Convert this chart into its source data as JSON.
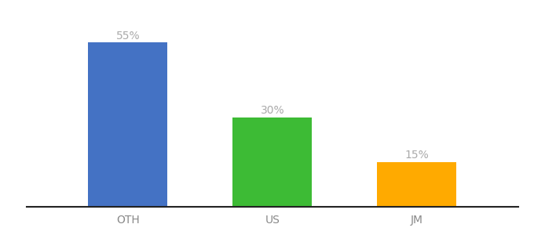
{
  "categories": [
    "OTH",
    "US",
    "JM"
  ],
  "values": [
    55,
    30,
    15
  ],
  "labels": [
    "55%",
    "30%",
    "15%"
  ],
  "bar_colors": [
    "#4472c4",
    "#3dbb35",
    "#ffaa00"
  ],
  "background_color": "#ffffff",
  "ylim": [
    0,
    63
  ],
  "bar_width": 0.55,
  "label_fontsize": 10,
  "tick_fontsize": 10,
  "label_color": "#aaaaaa",
  "tick_color": "#888888",
  "spine_color": "#222222"
}
